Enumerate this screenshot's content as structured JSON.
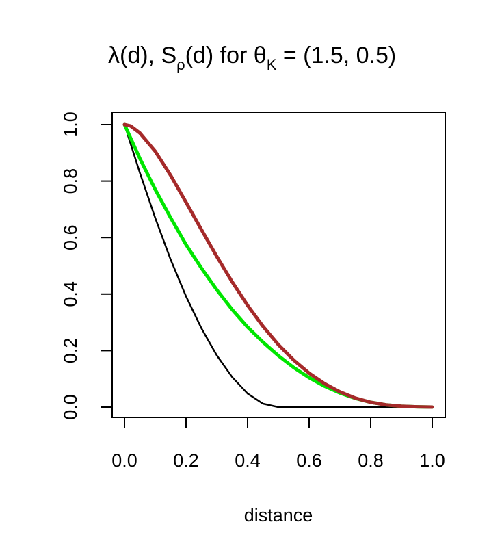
{
  "chart_data": {
    "type": "line",
    "title": {
      "lambda": "λ",
      "d1": "(d), S",
      "rho": "ρ",
      "d2": "(d) for θ",
      "k": "K",
      "rest": " = (1.5, 0.5)"
    },
    "xlabel": "distance",
    "ylabel": "",
    "xlim": [
      0,
      1
    ],
    "ylim": [
      0,
      1
    ],
    "xticks": [
      "0.0",
      "0.2",
      "0.4",
      "0.6",
      "0.8",
      "1.0"
    ],
    "yticks": [
      "0.0",
      "0.2",
      "0.4",
      "0.6",
      "0.8",
      "1.0"
    ],
    "grid": false,
    "series": [
      {
        "color": "#000000",
        "x": [
          0,
          0.05,
          0.1,
          0.15,
          0.2,
          0.25,
          0.3,
          0.35,
          0.4,
          0.45,
          0.5,
          0.6,
          0.7,
          0.8,
          0.9,
          1.0
        ],
        "values": [
          1.0,
          0.829,
          0.669,
          0.522,
          0.392,
          0.279,
          0.183,
          0.106,
          0.048,
          0.012,
          0.0,
          0.0,
          0.0,
          0.0,
          0.0,
          0.0
        ]
      },
      {
        "color": "#00e600",
        "x": [
          0,
          0.05,
          0.1,
          0.15,
          0.2,
          0.25,
          0.3,
          0.35,
          0.4,
          0.45,
          0.5,
          0.55,
          0.6,
          0.65,
          0.7,
          0.75,
          0.8,
          0.85,
          0.9,
          0.95,
          1.0
        ],
        "values": [
          1.0,
          0.88,
          0.77,
          0.67,
          0.575,
          0.492,
          0.415,
          0.345,
          0.283,
          0.23,
          0.182,
          0.14,
          0.104,
          0.074,
          0.05,
          0.031,
          0.017,
          0.008,
          0.003,
          0.001,
          0.0
        ]
      },
      {
        "color": "#a52a2a",
        "x": [
          0,
          0.02,
          0.05,
          0.1,
          0.15,
          0.2,
          0.25,
          0.3,
          0.35,
          0.4,
          0.45,
          0.5,
          0.55,
          0.6,
          0.65,
          0.7,
          0.75,
          0.8,
          0.85,
          0.9,
          0.95,
          1.0
        ],
        "values": [
          1.0,
          0.995,
          0.97,
          0.905,
          0.82,
          0.725,
          0.628,
          0.533,
          0.443,
          0.36,
          0.286,
          0.221,
          0.166,
          0.12,
          0.083,
          0.054,
          0.032,
          0.017,
          0.008,
          0.003,
          0.001,
          0.0
        ]
      }
    ]
  }
}
